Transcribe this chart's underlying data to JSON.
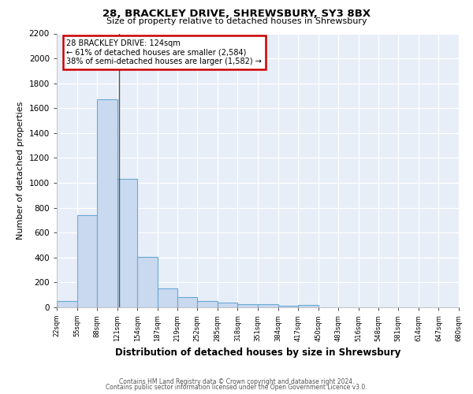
{
  "title1": "28, BRACKLEY DRIVE, SHREWSBURY, SY3 8BX",
  "title2": "Size of property relative to detached houses in Shrewsbury",
  "xlabel": "Distribution of detached houses by size in Shrewsbury",
  "ylabel": "Number of detached properties",
  "annotation_line1": "28 BRACKLEY DRIVE: 124sqm",
  "annotation_line2": "← 61% of detached houses are smaller (2,584)",
  "annotation_line3": "38% of semi-detached houses are larger (1,582) →",
  "property_size": 124,
  "bin_edges": [
    22,
    55,
    88,
    121,
    154,
    187,
    219,
    252,
    285,
    318,
    351,
    384,
    417,
    450,
    483,
    516,
    548,
    581,
    614,
    647,
    680
  ],
  "bar_heights": [
    50,
    740,
    1670,
    1030,
    405,
    150,
    80,
    48,
    40,
    28,
    28,
    15,
    20,
    0,
    0,
    0,
    0,
    0,
    0,
    0
  ],
  "bar_color": "#c9d9f0",
  "bar_edge_color": "#6aaad4",
  "vline_color": "#555555",
  "annotation_box_edge_color": "#cc0000",
  "background_color": "#e8eef8",
  "grid_color": "#ffffff",
  "ylim": [
    0,
    2200
  ],
  "yticks": [
    0,
    200,
    400,
    600,
    800,
    1000,
    1200,
    1400,
    1600,
    1800,
    2000,
    2200
  ],
  "footer1": "Contains HM Land Registry data © Crown copyright and database right 2024.",
  "footer2": "Contains public sector information licensed under the Open Government Licence v3.0."
}
